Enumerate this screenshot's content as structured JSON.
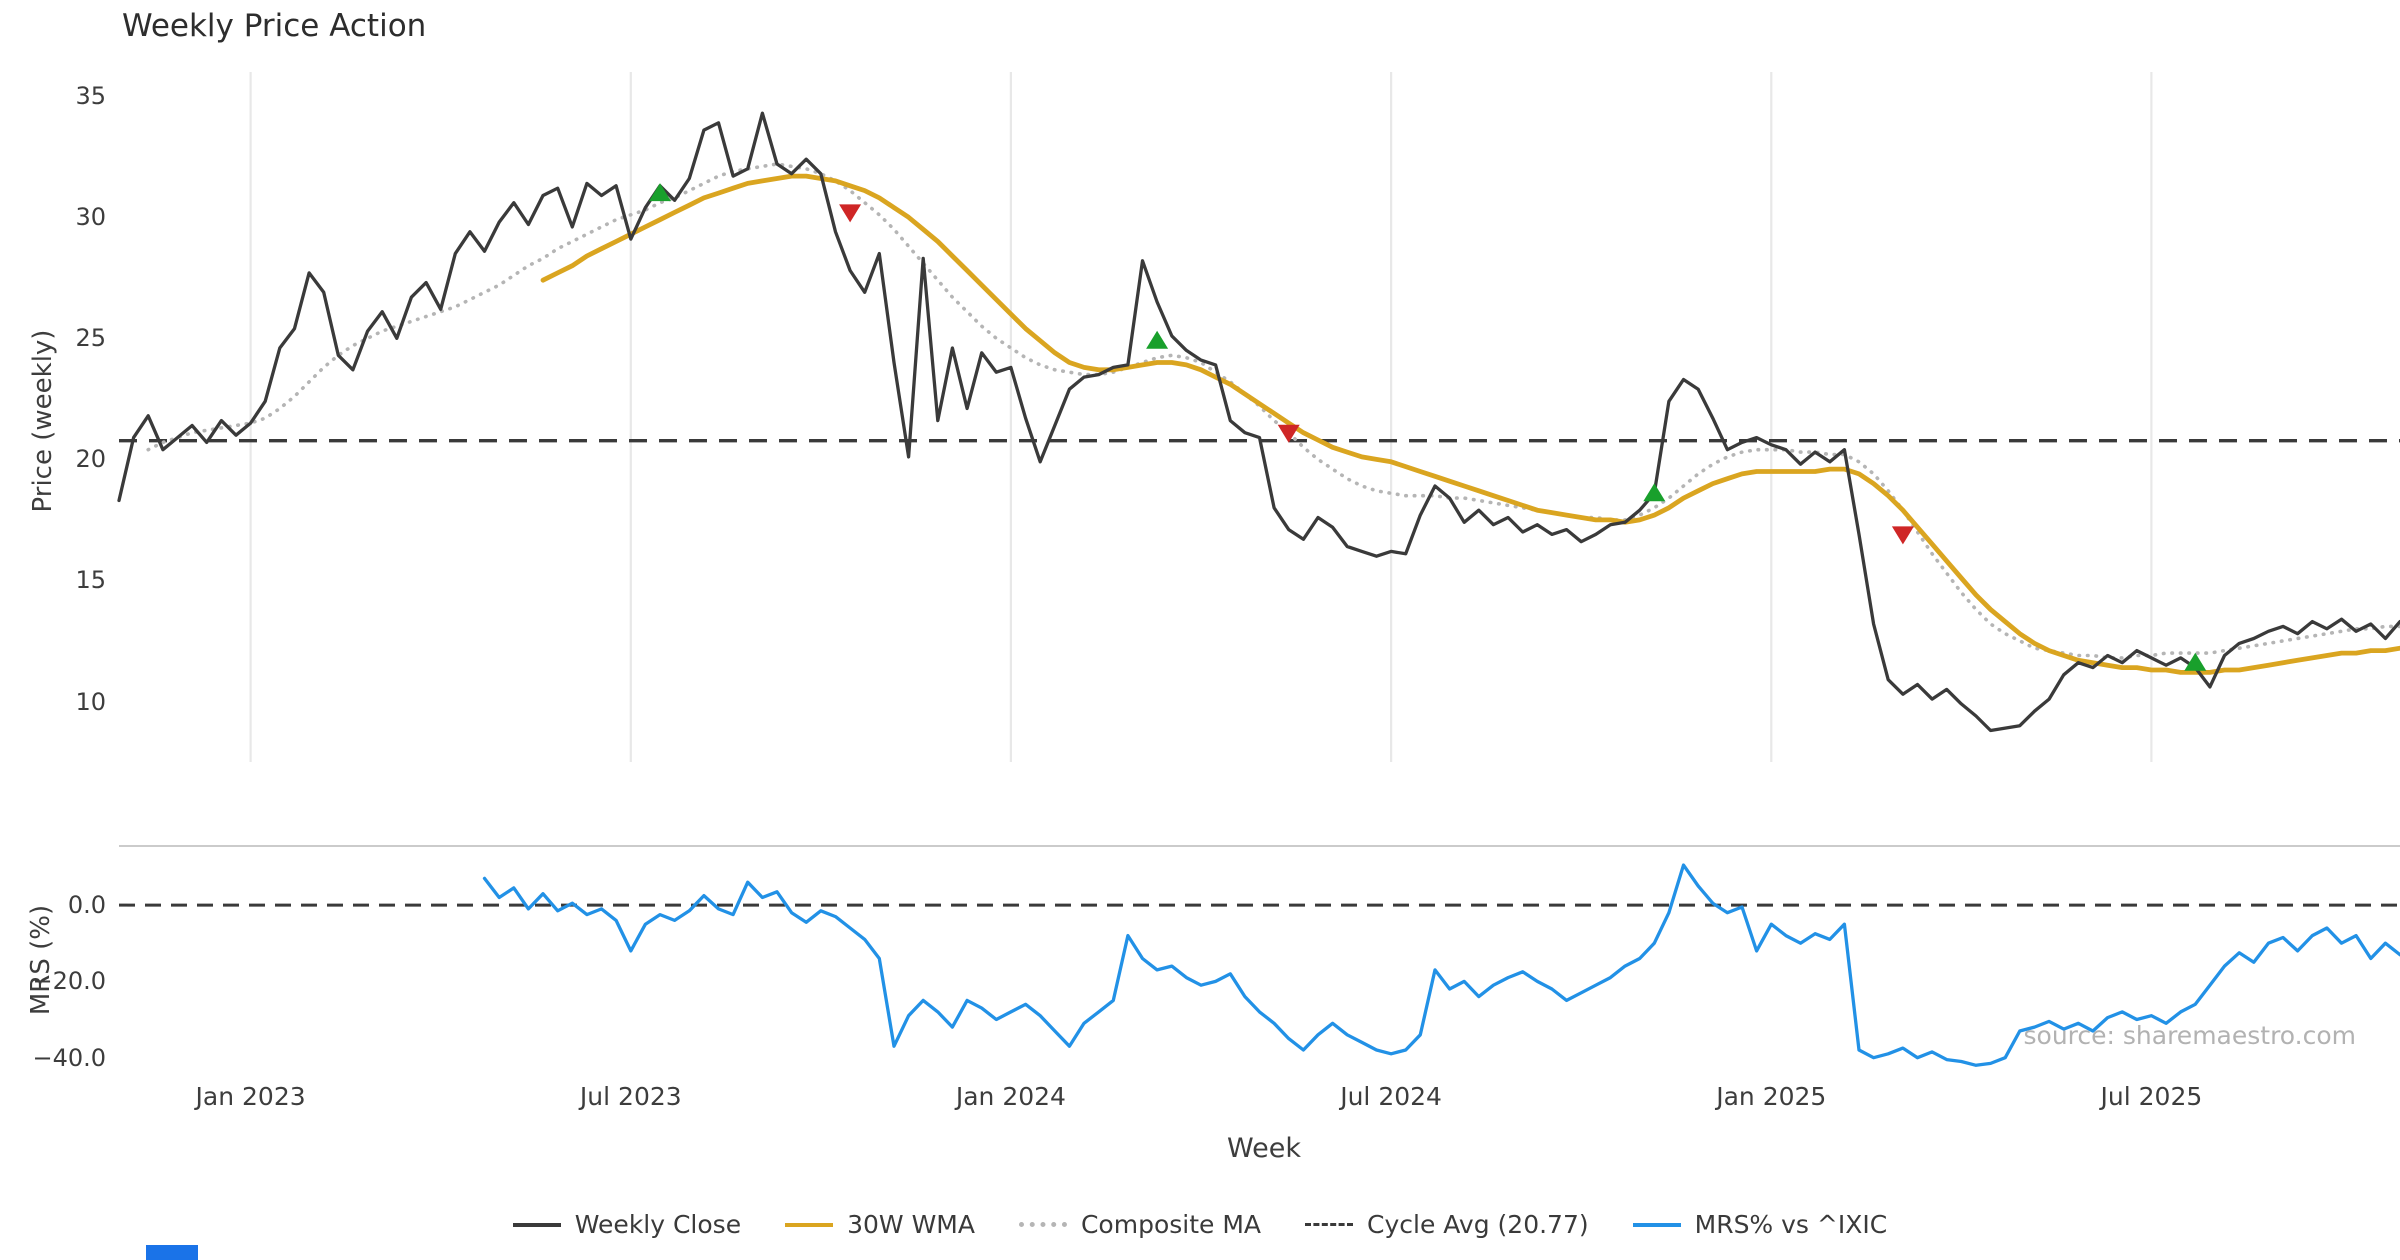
{
  "watermark": "source: sharemaestro.com",
  "chart_data": {
    "type": "line",
    "title": "Weekly Price Action",
    "xlabel": "Week",
    "weeks_total": 156,
    "x_ticks": [
      {
        "week": 9,
        "label": "Jan 2023"
      },
      {
        "week": 35,
        "label": "Jul 2023"
      },
      {
        "week": 61,
        "label": "Jan 2024"
      },
      {
        "week": 87,
        "label": "Jul 2024"
      },
      {
        "week": 113,
        "label": "Jan 2025"
      },
      {
        "week": 139,
        "label": "Jul 2025"
      }
    ],
    "grid": "vertical-only-top-panel",
    "legend_position": "bottom-center",
    "price_panel": {
      "ylabel": "Price (weekly)",
      "ylim": [
        7.5,
        36
      ],
      "yticks": [
        35,
        30,
        25,
        20,
        15,
        10
      ],
      "cycle_avg": 20.77,
      "cycle_avg_color": "#3a3a3a",
      "series": [
        {
          "name": "Weekly Close",
          "color": "#3a3a3a",
          "style": "solid",
          "lw": 3.3,
          "start_week": 0,
          "values": [
            18.3,
            20.9,
            21.8,
            20.4,
            20.9,
            21.4,
            20.7,
            21.6,
            21.0,
            21.5,
            22.4,
            24.6,
            25.4,
            27.7,
            26.9,
            24.3,
            23.7,
            25.3,
            26.1,
            25.0,
            26.7,
            27.3,
            26.2,
            28.5,
            29.4,
            28.6,
            29.8,
            30.6,
            29.7,
            30.9,
            31.2,
            29.6,
            31.4,
            30.9,
            31.3,
            29.1,
            30.4,
            31.3,
            30.7,
            31.6,
            33.6,
            33.9,
            31.7,
            32.0,
            34.3,
            32.2,
            31.8,
            32.4,
            31.8,
            29.4,
            27.8,
            26.9,
            28.5,
            24.0,
            20.1,
            28.3,
            21.6,
            24.6,
            22.1,
            24.4,
            23.6,
            23.8,
            21.7,
            19.9,
            21.4,
            22.9,
            23.4,
            23.5,
            23.8,
            23.9,
            28.2,
            26.5,
            25.1,
            24.5,
            24.1,
            23.9,
            21.6,
            21.1,
            20.9,
            18.0,
            17.1,
            16.7,
            17.6,
            17.2,
            16.4,
            16.2,
            16.0,
            16.2,
            16.1,
            17.7,
            18.9,
            18.4,
            17.4,
            17.9,
            17.3,
            17.6,
            17.0,
            17.3,
            16.9,
            17.1,
            16.6,
            16.9,
            17.3,
            17.4,
            17.9,
            18.6,
            22.4,
            23.3,
            22.9,
            21.7,
            20.4,
            20.7,
            20.9,
            20.6,
            20.4,
            19.8,
            20.3,
            19.9,
            20.4,
            16.9,
            13.2,
            10.9,
            10.3,
            10.7,
            10.1,
            10.5,
            9.9,
            9.4,
            8.8,
            8.9,
            9.0,
            9.6,
            10.1,
            11.1,
            11.6,
            11.4,
            11.9,
            11.6,
            12.1,
            11.8,
            11.5,
            11.8,
            11.4,
            10.6,
            11.9,
            12.4,
            12.6,
            12.9,
            13.1,
            12.8,
            13.3,
            13.0,
            13.4,
            12.9,
            13.2,
            12.6,
            13.3
          ]
        },
        {
          "name": "30W WMA",
          "color": "#DAA520",
          "style": "solid",
          "lw": 4.8,
          "start_week": 29,
          "values": [
            27.4,
            27.7,
            28.0,
            28.4,
            28.7,
            29.0,
            29.3,
            29.6,
            29.9,
            30.2,
            30.5,
            30.8,
            31.0,
            31.2,
            31.4,
            31.5,
            31.6,
            31.7,
            31.7,
            31.6,
            31.5,
            31.3,
            31.1,
            30.8,
            30.4,
            30.0,
            29.5,
            29.0,
            28.4,
            27.8,
            27.2,
            26.6,
            26.0,
            25.4,
            24.9,
            24.4,
            24.0,
            23.8,
            23.7,
            23.7,
            23.8,
            23.9,
            24.0,
            24.0,
            23.9,
            23.7,
            23.4,
            23.1,
            22.7,
            22.3,
            21.9,
            21.5,
            21.1,
            20.8,
            20.5,
            20.3,
            20.1,
            20.0,
            19.9,
            19.7,
            19.5,
            19.3,
            19.1,
            18.9,
            18.7,
            18.5,
            18.3,
            18.1,
            17.9,
            17.8,
            17.7,
            17.6,
            17.5,
            17.5,
            17.4,
            17.5,
            17.7,
            18.0,
            18.4,
            18.7,
            19.0,
            19.2,
            19.4,
            19.5,
            19.5,
            19.5,
            19.5,
            19.5,
            19.6,
            19.6,
            19.4,
            19.0,
            18.5,
            17.9,
            17.2,
            16.5,
            15.8,
            15.1,
            14.4,
            13.8,
            13.3,
            12.8,
            12.4,
            12.1,
            11.9,
            11.7,
            11.6,
            11.5,
            11.4,
            11.4,
            11.3,
            11.3,
            11.2,
            11.2,
            11.2,
            11.3,
            11.3,
            11.4,
            11.5,
            11.6,
            11.7,
            11.8,
            11.9,
            12.0,
            12.0,
            12.1,
            12.1,
            12.2
          ]
        },
        {
          "name": "Composite MA",
          "color": "#b5b5b5",
          "style": "dotted",
          "lw": 3.6,
          "start_week": 2,
          "values": [
            20.4,
            20.7,
            20.9,
            21.1,
            21.2,
            21.3,
            21.4,
            21.5,
            21.7,
            22.1,
            22.6,
            23.2,
            23.8,
            24.3,
            24.7,
            25.0,
            25.3,
            25.5,
            25.7,
            25.9,
            26.1,
            26.3,
            26.6,
            26.9,
            27.2,
            27.6,
            28.0,
            28.3,
            28.7,
            29.0,
            29.3,
            29.6,
            29.9,
            30.1,
            30.3,
            30.6,
            30.8,
            31.1,
            31.4,
            31.7,
            31.9,
            32.0,
            32.1,
            32.2,
            32.1,
            32.0,
            31.8,
            31.5,
            31.1,
            30.6,
            30.1,
            29.5,
            28.8,
            28.1,
            27.4,
            26.7,
            26.1,
            25.5,
            25.0,
            24.6,
            24.2,
            23.9,
            23.7,
            23.6,
            23.5,
            23.5,
            23.6,
            23.8,
            24.0,
            24.2,
            24.3,
            24.2,
            24.0,
            23.6,
            23.2,
            22.7,
            22.2,
            21.6,
            21.1,
            20.5,
            20.0,
            19.6,
            19.2,
            18.9,
            18.7,
            18.6,
            18.5,
            18.5,
            18.5,
            18.4,
            18.4,
            18.3,
            18.2,
            18.1,
            18.0,
            17.9,
            17.8,
            17.7,
            17.6,
            17.6,
            17.5,
            17.5,
            17.7,
            18.0,
            18.4,
            18.9,
            19.4,
            19.8,
            20.1,
            20.3,
            20.4,
            20.4,
            20.4,
            20.3,
            20.3,
            20.2,
            20.2,
            19.9,
            19.4,
            18.7,
            17.9,
            17.0,
            16.1,
            15.3,
            14.5,
            13.8,
            13.2,
            12.8,
            12.5,
            12.2,
            12.1,
            12.0,
            11.9,
            11.9,
            11.8,
            11.8,
            11.9,
            11.9,
            12.0,
            12.0,
            12.0,
            12.0,
            12.1,
            12.2,
            12.3,
            12.4,
            12.5,
            12.6,
            12.7,
            12.8,
            12.9,
            13.0,
            13.0,
            13.1,
            13.1
          ]
        }
      ],
      "signals": {
        "buy": {
          "color": "#19a02c",
          "points": [
            {
              "week": 37,
              "price": 31.0
            },
            {
              "week": 71,
              "price": 24.9
            },
            {
              "week": 105,
              "price": 18.6
            },
            {
              "week": 142,
              "price": 11.6
            }
          ]
        },
        "sell": {
          "color": "#cf2626",
          "points": [
            {
              "week": 50,
              "price": 30.2
            },
            {
              "week": 80,
              "price": 21.1
            },
            {
              "week": 122,
              "price": 16.9
            }
          ]
        }
      }
    },
    "mrs_panel": {
      "ylabel": "MRS (%)",
      "ylim": [
        -43.5,
        15.5
      ],
      "yticks": [
        {
          "value": 0,
          "label": "0.0"
        },
        {
          "value": -20,
          "label": "−20.0"
        },
        {
          "value": -40,
          "label": "−40.0"
        }
      ],
      "zero_line": 0,
      "series": [
        {
          "name": "MRS% vs ^IXIC",
          "color": "#2291e6",
          "style": "solid",
          "lw": 3.3,
          "start_week": 25,
          "values": [
            7.0,
            2.0,
            4.5,
            -1.0,
            3.0,
            -1.5,
            0.5,
            -2.5,
            -1.0,
            -4.0,
            -12.0,
            -5.0,
            -2.5,
            -4.0,
            -1.5,
            2.5,
            -1.0,
            -2.5,
            6.0,
            2.0,
            3.5,
            -2.0,
            -4.5,
            -1.5,
            -3.0,
            -6.0,
            -9.0,
            -14.0,
            -37.0,
            -29.0,
            -25.0,
            -28.0,
            -32.0,
            -25.0,
            -27.0,
            -30.0,
            -28.0,
            -26.0,
            -29.0,
            -33.0,
            -37.0,
            -31.0,
            -28.0,
            -25.0,
            -8.0,
            -14.0,
            -17.0,
            -16.0,
            -19.0,
            -21.0,
            -20.0,
            -18.0,
            -24.0,
            -28.0,
            -31.0,
            -35.0,
            -38.0,
            -34.0,
            -31.0,
            -34.0,
            -36.0,
            -38.0,
            -39.0,
            -38.0,
            -34.0,
            -17.0,
            -22.0,
            -20.0,
            -24.0,
            -21.0,
            -19.0,
            -17.5,
            -20.0,
            -22.0,
            -25.0,
            -23.0,
            -21.0,
            -19.0,
            -16.0,
            -14.0,
            -10.0,
            -2.0,
            10.5,
            5.0,
            0.5,
            -2.0,
            -0.5,
            -12.0,
            -5.0,
            -8.0,
            -10.0,
            -7.5,
            -9.0,
            -5.0,
            -38.0,
            -40.0,
            -39.0,
            -37.5,
            -40.0,
            -38.5,
            -40.5,
            -41.0,
            -42.0,
            -41.5,
            -40.0,
            -33.0,
            -32.0,
            -30.5,
            -32.5,
            -31.0,
            -33.0,
            -29.5,
            -28.0,
            -30.0,
            -29.0,
            -31.0,
            -28.0,
            -26.0,
            -21.0,
            -16.0,
            -12.5,
            -15.0,
            -10.0,
            -8.5,
            -12.0,
            -8.0,
            -6.0,
            -10.0,
            -8.0,
            -14.0,
            -10.0,
            -13.0
          ]
        }
      ]
    },
    "legend": [
      {
        "label": "Weekly Close",
        "style": "solid",
        "color": "#3a3a3a"
      },
      {
        "label": "30W WMA",
        "style": "solid",
        "color": "#DAA520"
      },
      {
        "label": "Composite MA",
        "style": "dotted",
        "color": "#b5b5b5"
      },
      {
        "label": "Cycle Avg (20.77)",
        "style": "dashed",
        "color": "#3a3a3a"
      },
      {
        "label": "MRS% vs ^IXIC",
        "style": "solid",
        "color": "#2291e6"
      }
    ]
  }
}
